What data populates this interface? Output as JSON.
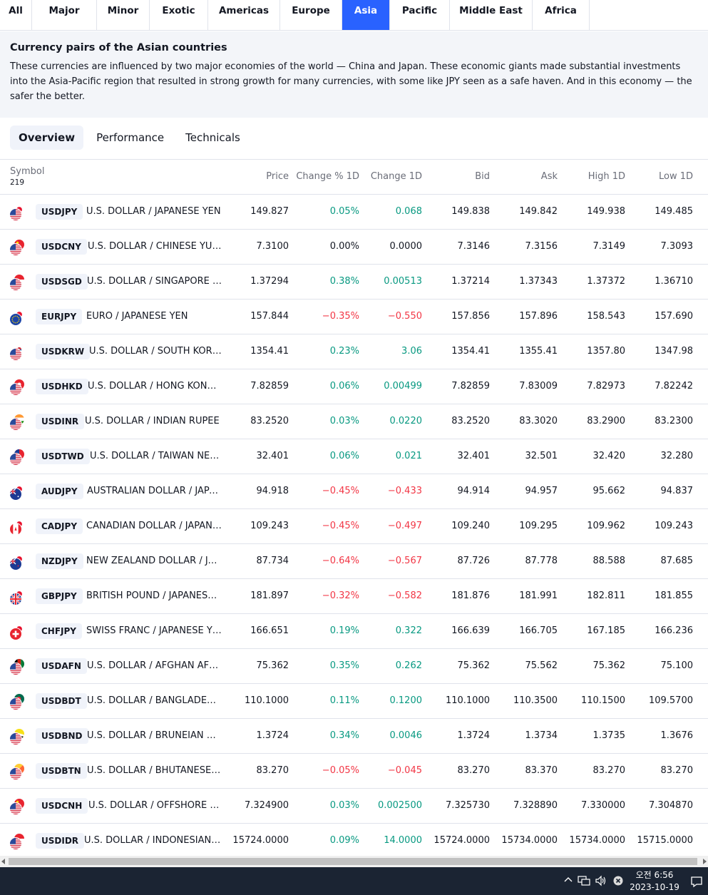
{
  "region_tabs": [
    {
      "label": "All",
      "active": false
    },
    {
      "label": "Major",
      "active": false
    },
    {
      "label": "Minor",
      "active": false
    },
    {
      "label": "Exotic",
      "active": false
    },
    {
      "label": "Americas",
      "active": false
    },
    {
      "label": "Europe",
      "active": false
    },
    {
      "label": "Asia",
      "active": true
    },
    {
      "label": "Pacific",
      "active": false
    },
    {
      "label": "Middle East",
      "active": false
    },
    {
      "label": "Africa",
      "active": false
    }
  ],
  "description": {
    "title": "Currency pairs of the Asian countries",
    "text": "These currencies are influenced by two major economies of the world — China and Japan. These economic giants made substantial investments into the Asia-Pacific region that resulted in strong growth for many currencies, with some like JPY seen as a safe haven. And in this economy — the safer the better."
  },
  "view_tabs": [
    {
      "label": "Overview",
      "active": true
    },
    {
      "label": "Performance",
      "active": false
    },
    {
      "label": "Technicals",
      "active": false
    }
  ],
  "table": {
    "columns": {
      "symbol": "Symbol",
      "count": "219",
      "price": "Price",
      "change_pct": "Change % 1D",
      "change": "Change 1D",
      "bid": "Bid",
      "ask": "Ask",
      "high": "High 1D",
      "low": "Low 1D"
    },
    "rows": [
      {
        "ticker": "USDJPY",
        "name": "U.S. DOLLAR / JAPANESE YEN",
        "price": "149.827",
        "change_pct": "0.05%",
        "change": "0.068",
        "bid": "149.838",
        "ask": "149.842",
        "high": "149.938",
        "low": "149.485",
        "dir": "up",
        "flag_base": "us",
        "flag_quote": "jp"
      },
      {
        "ticker": "USDCNY",
        "name": "U.S. DOLLAR / CHINESE YUAN",
        "price": "7.3100",
        "change_pct": "0.00%",
        "change": "0.0000",
        "bid": "7.3146",
        "ask": "7.3156",
        "high": "7.3149",
        "low": "7.3093",
        "dir": "neutral",
        "flag_base": "us",
        "flag_quote": "cn"
      },
      {
        "ticker": "USDSGD",
        "name": "U.S. DOLLAR / SINGAPORE D...",
        "price": "1.37294",
        "change_pct": "0.38%",
        "change": "0.00513",
        "bid": "1.37214",
        "ask": "1.37343",
        "high": "1.37372",
        "low": "1.36710",
        "dir": "up",
        "flag_base": "us",
        "flag_quote": "sg"
      },
      {
        "ticker": "EURJPY",
        "name": "EURO / JAPANESE YEN",
        "price": "157.844",
        "change_pct": "−0.35%",
        "change": "−0.550",
        "bid": "157.856",
        "ask": "157.896",
        "high": "158.543",
        "low": "157.690",
        "dir": "down",
        "flag_base": "eu",
        "flag_quote": "jp"
      },
      {
        "ticker": "USDKRW",
        "name": "U.S. DOLLAR / SOUTH KORE...",
        "price": "1354.41",
        "change_pct": "0.23%",
        "change": "3.06",
        "bid": "1354.41",
        "ask": "1355.41",
        "high": "1357.80",
        "low": "1347.98",
        "dir": "up",
        "flag_base": "us",
        "flag_quote": "kr"
      },
      {
        "ticker": "USDHKD",
        "name": "U.S. DOLLAR / HONG KONG ...",
        "price": "7.82859",
        "change_pct": "0.06%",
        "change": "0.00499",
        "bid": "7.82859",
        "ask": "7.83009",
        "high": "7.82973",
        "low": "7.82242",
        "dir": "up",
        "flag_base": "us",
        "flag_quote": "hk"
      },
      {
        "ticker": "USDINR",
        "name": "U.S. DOLLAR / INDIAN RUPEE",
        "price": "83.2520",
        "change_pct": "0.03%",
        "change": "0.0220",
        "bid": "83.2520",
        "ask": "83.3020",
        "high": "83.2900",
        "low": "83.2300",
        "dir": "up",
        "flag_base": "us",
        "flag_quote": "in"
      },
      {
        "ticker": "USDTWD",
        "name": "U.S. DOLLAR / TAIWAN NEW...",
        "price": "32.401",
        "change_pct": "0.06%",
        "change": "0.021",
        "bid": "32.401",
        "ask": "32.501",
        "high": "32.420",
        "low": "32.280",
        "dir": "up",
        "flag_base": "us",
        "flag_quote": "tw"
      },
      {
        "ticker": "AUDJPY",
        "name": "AUSTRALIAN DOLLAR / JAPA...",
        "price": "94.918",
        "change_pct": "−0.45%",
        "change": "−0.433",
        "bid": "94.914",
        "ask": "94.957",
        "high": "95.662",
        "low": "94.837",
        "dir": "down",
        "flag_base": "au",
        "flag_quote": "jp"
      },
      {
        "ticker": "CADJPY",
        "name": "CANADIAN DOLLAR / JAPANE...",
        "price": "109.243",
        "change_pct": "−0.45%",
        "change": "−0.497",
        "bid": "109.240",
        "ask": "109.295",
        "high": "109.962",
        "low": "109.243",
        "dir": "down",
        "flag_base": "ca",
        "flag_quote": "jp"
      },
      {
        "ticker": "NZDJPY",
        "name": "NEW ZEALAND DOLLAR / JA...",
        "price": "87.734",
        "change_pct": "−0.64%",
        "change": "−0.567",
        "bid": "87.726",
        "ask": "87.778",
        "high": "88.588",
        "low": "87.685",
        "dir": "down",
        "flag_base": "nz",
        "flag_quote": "jp"
      },
      {
        "ticker": "GBPJPY",
        "name": "BRITISH POUND / JAPANESE ...",
        "price": "181.897",
        "change_pct": "−0.32%",
        "change": "−0.582",
        "bid": "181.876",
        "ask": "181.991",
        "high": "182.811",
        "low": "181.855",
        "dir": "down",
        "flag_base": "gb",
        "flag_quote": "jp"
      },
      {
        "ticker": "CHFJPY",
        "name": "SWISS FRANC / JAPANESE YEN",
        "price": "166.651",
        "change_pct": "0.19%",
        "change": "0.322",
        "bid": "166.639",
        "ask": "166.705",
        "high": "167.185",
        "low": "166.236",
        "dir": "up",
        "flag_base": "ch",
        "flag_quote": "jp"
      },
      {
        "ticker": "USDAFN",
        "name": "U.S. DOLLAR / AFGHAN AFG...",
        "price": "75.362",
        "change_pct": "0.35%",
        "change": "0.262",
        "bid": "75.362",
        "ask": "75.562",
        "high": "75.362",
        "low": "75.100",
        "dir": "up",
        "flag_base": "us",
        "flag_quote": "af"
      },
      {
        "ticker": "USDBDT",
        "name": "U.S. DOLLAR / BANGLADESH...",
        "price": "110.1000",
        "change_pct": "0.11%",
        "change": "0.1200",
        "bid": "110.1000",
        "ask": "110.3500",
        "high": "110.1500",
        "low": "109.5700",
        "dir": "up",
        "flag_base": "us",
        "flag_quote": "bd"
      },
      {
        "ticker": "USDBND",
        "name": "U.S. DOLLAR / BRUNEIAN D...",
        "price": "1.3724",
        "change_pct": "0.34%",
        "change": "0.0046",
        "bid": "1.3724",
        "ask": "1.3734",
        "high": "1.3735",
        "low": "1.3676",
        "dir": "up",
        "flag_base": "us",
        "flag_quote": "bn"
      },
      {
        "ticker": "USDBTN",
        "name": "U.S. DOLLAR / BHUTANESE ...",
        "price": "83.270",
        "change_pct": "−0.05%",
        "change": "−0.045",
        "bid": "83.270",
        "ask": "83.370",
        "high": "83.270",
        "low": "83.270",
        "dir": "down",
        "flag_base": "us",
        "flag_quote": "bt"
      },
      {
        "ticker": "USDCNH",
        "name": "U.S. DOLLAR / OFFSHORE C...",
        "price": "7.324900",
        "change_pct": "0.03%",
        "change": "0.002500",
        "bid": "7.325730",
        "ask": "7.328890",
        "high": "7.330000",
        "low": "7.304870",
        "dir": "up",
        "flag_base": "us",
        "flag_quote": "cn"
      },
      {
        "ticker": "USDIDR",
        "name": "U.S. DOLLAR / INDONESIAN ...",
        "price": "15724.0000",
        "change_pct": "0.09%",
        "change": "14.0000",
        "bid": "15724.0000",
        "ask": "15734.0000",
        "high": "15734.0000",
        "low": "15715.0000",
        "dir": "up",
        "flag_base": "us",
        "flag_quote": "id"
      }
    ]
  },
  "taskbar": {
    "time": "오전 6:56",
    "date": "2023-10-19"
  },
  "colors": {
    "accent": "#2962ff",
    "up": "#089981",
    "down": "#f23645",
    "taskbar": "#1b2433"
  }
}
